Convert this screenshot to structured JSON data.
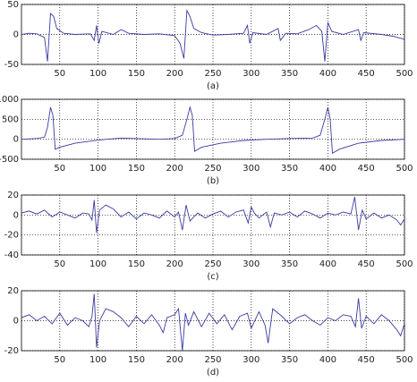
{
  "chart_data": [
    {
      "type": "line",
      "caption": "(a)",
      "xlim": [
        0,
        500
      ],
      "xticks": [
        50,
        100,
        150,
        200,
        250,
        300,
        350,
        400,
        450,
        500
      ],
      "ylim": [
        -50,
        50
      ],
      "yticks": [
        -50,
        0,
        50
      ],
      "grid": true,
      "color": "#3a3aa0",
      "x": [
        0,
        10,
        20,
        30,
        34,
        38,
        42,
        46,
        55,
        70,
        90,
        95,
        98,
        101,
        105,
        120,
        130,
        140,
        160,
        180,
        200,
        207,
        212,
        216,
        220,
        225,
        235,
        250,
        270,
        290,
        295,
        298,
        302,
        320,
        335,
        338,
        345,
        360,
        375,
        385,
        392,
        396,
        400,
        405,
        420,
        440,
        443,
        447,
        470,
        485,
        500
      ],
      "values": [
        0,
        2,
        1,
        -5,
        -45,
        35,
        30,
        10,
        2,
        0,
        1,
        -10,
        15,
        -15,
        5,
        0,
        8,
        2,
        0,
        1,
        -2,
        -15,
        -40,
        40,
        30,
        10,
        3,
        -1,
        0,
        2,
        15,
        -15,
        3,
        0,
        10,
        -10,
        2,
        1,
        8,
        15,
        5,
        -45,
        20,
        5,
        0,
        8,
        -10,
        3,
        0,
        -3,
        -8
      ]
    },
    {
      "type": "line",
      "caption": "(b)",
      "xlim": [
        0,
        500
      ],
      "xticks": [
        50,
        100,
        150,
        200,
        250,
        300,
        350,
        400,
        450,
        500
      ],
      "ylim": [
        -500,
        1000
      ],
      "yticks": [
        -500,
        0,
        500,
        1000
      ],
      "grid": true,
      "color": "#3a3aa0",
      "x": [
        0,
        20,
        30,
        34,
        38,
        41,
        44,
        50,
        70,
        100,
        130,
        160,
        180,
        200,
        210,
        216,
        220,
        223,
        226,
        235,
        260,
        290,
        320,
        350,
        380,
        390,
        396,
        400,
        403,
        406,
        415,
        440,
        470,
        500
      ],
      "values": [
        0,
        20,
        50,
        300,
        800,
        600,
        -250,
        -200,
        -100,
        -20,
        30,
        10,
        0,
        20,
        100,
        500,
        800,
        600,
        -300,
        -200,
        -100,
        -30,
        0,
        20,
        30,
        100,
        500,
        800,
        500,
        -350,
        -250,
        -100,
        -30,
        0
      ]
    },
    {
      "type": "line",
      "caption": "(c)",
      "xlim": [
        0,
        500
      ],
      "xticks": [
        50,
        100,
        150,
        200,
        250,
        300,
        350,
        400,
        450,
        500
      ],
      "ylim": [
        -40,
        20
      ],
      "yticks": [
        -40,
        -20,
        0,
        20
      ],
      "grid": true,
      "color": "#3a3aa0",
      "x": [
        0,
        10,
        20,
        30,
        40,
        50,
        60,
        70,
        80,
        88,
        92,
        95,
        98,
        102,
        110,
        120,
        130,
        140,
        150,
        160,
        170,
        180,
        190,
        200,
        205,
        210,
        215,
        220,
        230,
        240,
        250,
        260,
        270,
        280,
        290,
        296,
        300,
        304,
        310,
        320,
        325,
        330,
        340,
        350,
        360,
        370,
        380,
        390,
        400,
        410,
        420,
        430,
        435,
        440,
        445,
        450,
        460,
        470,
        480,
        490,
        495,
        500
      ],
      "values": [
        2,
        4,
        1,
        5,
        -2,
        3,
        0,
        -3,
        2,
        1,
        -5,
        15,
        -18,
        5,
        10,
        6,
        -2,
        3,
        -4,
        2,
        0,
        -3,
        4,
        -2,
        3,
        -15,
        10,
        -6,
        2,
        -3,
        1,
        4,
        -2,
        3,
        5,
        -8,
        8,
        2,
        -3,
        3,
        -12,
        2,
        0,
        3,
        -2,
        4,
        1,
        -3,
        2,
        0,
        3,
        1,
        18,
        -15,
        5,
        -4,
        2,
        -3,
        0,
        -5,
        -10,
        -4
      ]
    },
    {
      "type": "line",
      "caption": "(d)",
      "xlim": [
        0,
        500
      ],
      "xticks": [
        50,
        100,
        150,
        200,
        250,
        300,
        350,
        400,
        450,
        500
      ],
      "ylim": [
        -20,
        20
      ],
      "yticks": [
        -20,
        0,
        20
      ],
      "grid": true,
      "color": "#3a3aa0",
      "x": [
        0,
        10,
        20,
        30,
        40,
        50,
        60,
        70,
        80,
        88,
        92,
        95,
        98,
        102,
        110,
        120,
        130,
        140,
        150,
        160,
        170,
        180,
        185,
        190,
        200,
        205,
        210,
        214,
        218,
        225,
        235,
        245,
        255,
        265,
        275,
        285,
        295,
        300,
        310,
        318,
        322,
        328,
        340,
        350,
        360,
        370,
        380,
        390,
        400,
        410,
        420,
        430,
        436,
        440,
        444,
        450,
        460,
        470,
        480,
        490,
        495,
        500
      ],
      "values": [
        2,
        4,
        0,
        3,
        -2,
        5,
        -3,
        2,
        0,
        -4,
        3,
        18,
        -18,
        0,
        8,
        6,
        2,
        -4,
        3,
        -2,
        4,
        -3,
        -8,
        2,
        4,
        8,
        -20,
        5,
        -3,
        6,
        -4,
        5,
        -2,
        4,
        -6,
        3,
        5,
        -5,
        6,
        -3,
        -15,
        8,
        3,
        -2,
        2,
        4,
        0,
        -3,
        2,
        0,
        4,
        3,
        -4,
        15,
        -5,
        3,
        -2,
        4,
        0,
        -6,
        -10,
        -2
      ]
    }
  ]
}
